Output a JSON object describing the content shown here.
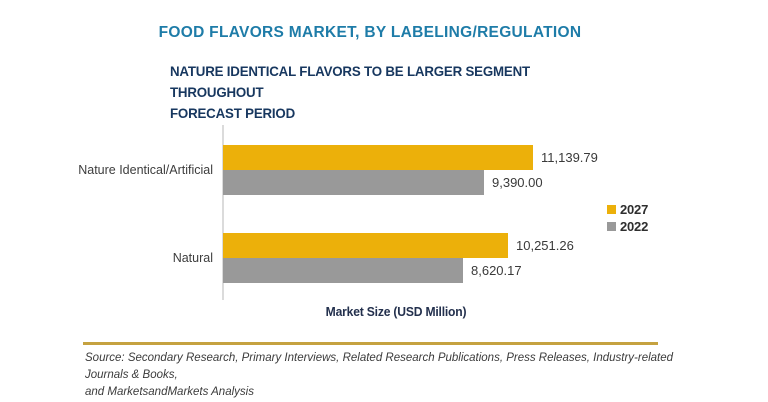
{
  "title": "FOOD FLAVORS MARKET, BY LABELING/REGULATION",
  "subtitle": {
    "lines": [
      "NATURE IDENTICAL FLAVORS TO BE LARGER SEGMENT THROUGHOUT",
      "FORECAST PERIOD"
    ]
  },
  "chart_data": {
    "type": "bar",
    "orientation": "horizontal",
    "categories": [
      "Nature Identical/Artificial",
      "Natural"
    ],
    "series": [
      {
        "name": "2027",
        "color": "#ECB00A",
        "values": [
          11139.79,
          10251.26
        ],
        "labels": [
          "11,139.79",
          "10,251.26"
        ]
      },
      {
        "name": "2022",
        "color": "#999999",
        "values": [
          9390.0,
          8620.17
        ],
        "labels": [
          "9,390.00",
          "8,620.17"
        ]
      }
    ],
    "xlabel": "Market Size (USD Million)",
    "legend_position": "right",
    "grid": false
  },
  "source": {
    "lines": [
      "Source: Secondary Research, Primary Interviews, Related Research Publications, Press Releases, Industry-related Journals & Books,",
      "and MarketsandMarkets Analysis"
    ]
  },
  "colors": {
    "title": "#1E7CA8",
    "subtitle": "#17375F",
    "series_2027": "#ECB00A",
    "series_2022": "#999999",
    "axis_line": "#DBDBDB",
    "gold_rule": "#C5A240",
    "value_text": "#3A3A3A"
  }
}
